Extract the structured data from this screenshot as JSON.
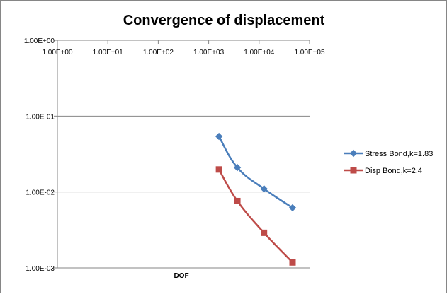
{
  "chart_data": {
    "type": "line",
    "title": "Convergence of displacement",
    "xlabel": "DOF",
    "ylabel": "",
    "x_scale": "log",
    "y_scale": "log",
    "xlim": [
      1,
      100000
    ],
    "ylim": [
      0.001,
      1
    ],
    "x_tick_labels": [
      "1.00E+00",
      "1.00E+01",
      "1.00E+02",
      "1.00E+03",
      "1.00E+04",
      "1.00E+05"
    ],
    "y_tick_labels": [
      "1.00E+00",
      "1.00E-01",
      "1.00E-02",
      "1.00E-03"
    ],
    "grid": "horizontal major gridlines",
    "legend_position": "right",
    "series": [
      {
        "name": "Stress Bond,k=1.83",
        "color": "#4A7EBB",
        "marker": "diamond",
        "x": [
          1600,
          3700,
          12500,
          46000
        ],
        "y": [
          0.054,
          0.021,
          0.011,
          0.0062
        ]
      },
      {
        "name": "Disp Bond,k=2.4",
        "color": "#BE4B48",
        "marker": "square",
        "x": [
          1600,
          3700,
          12500,
          46000
        ],
        "y": [
          0.0198,
          0.0076,
          0.0029,
          0.00118
        ]
      }
    ]
  }
}
